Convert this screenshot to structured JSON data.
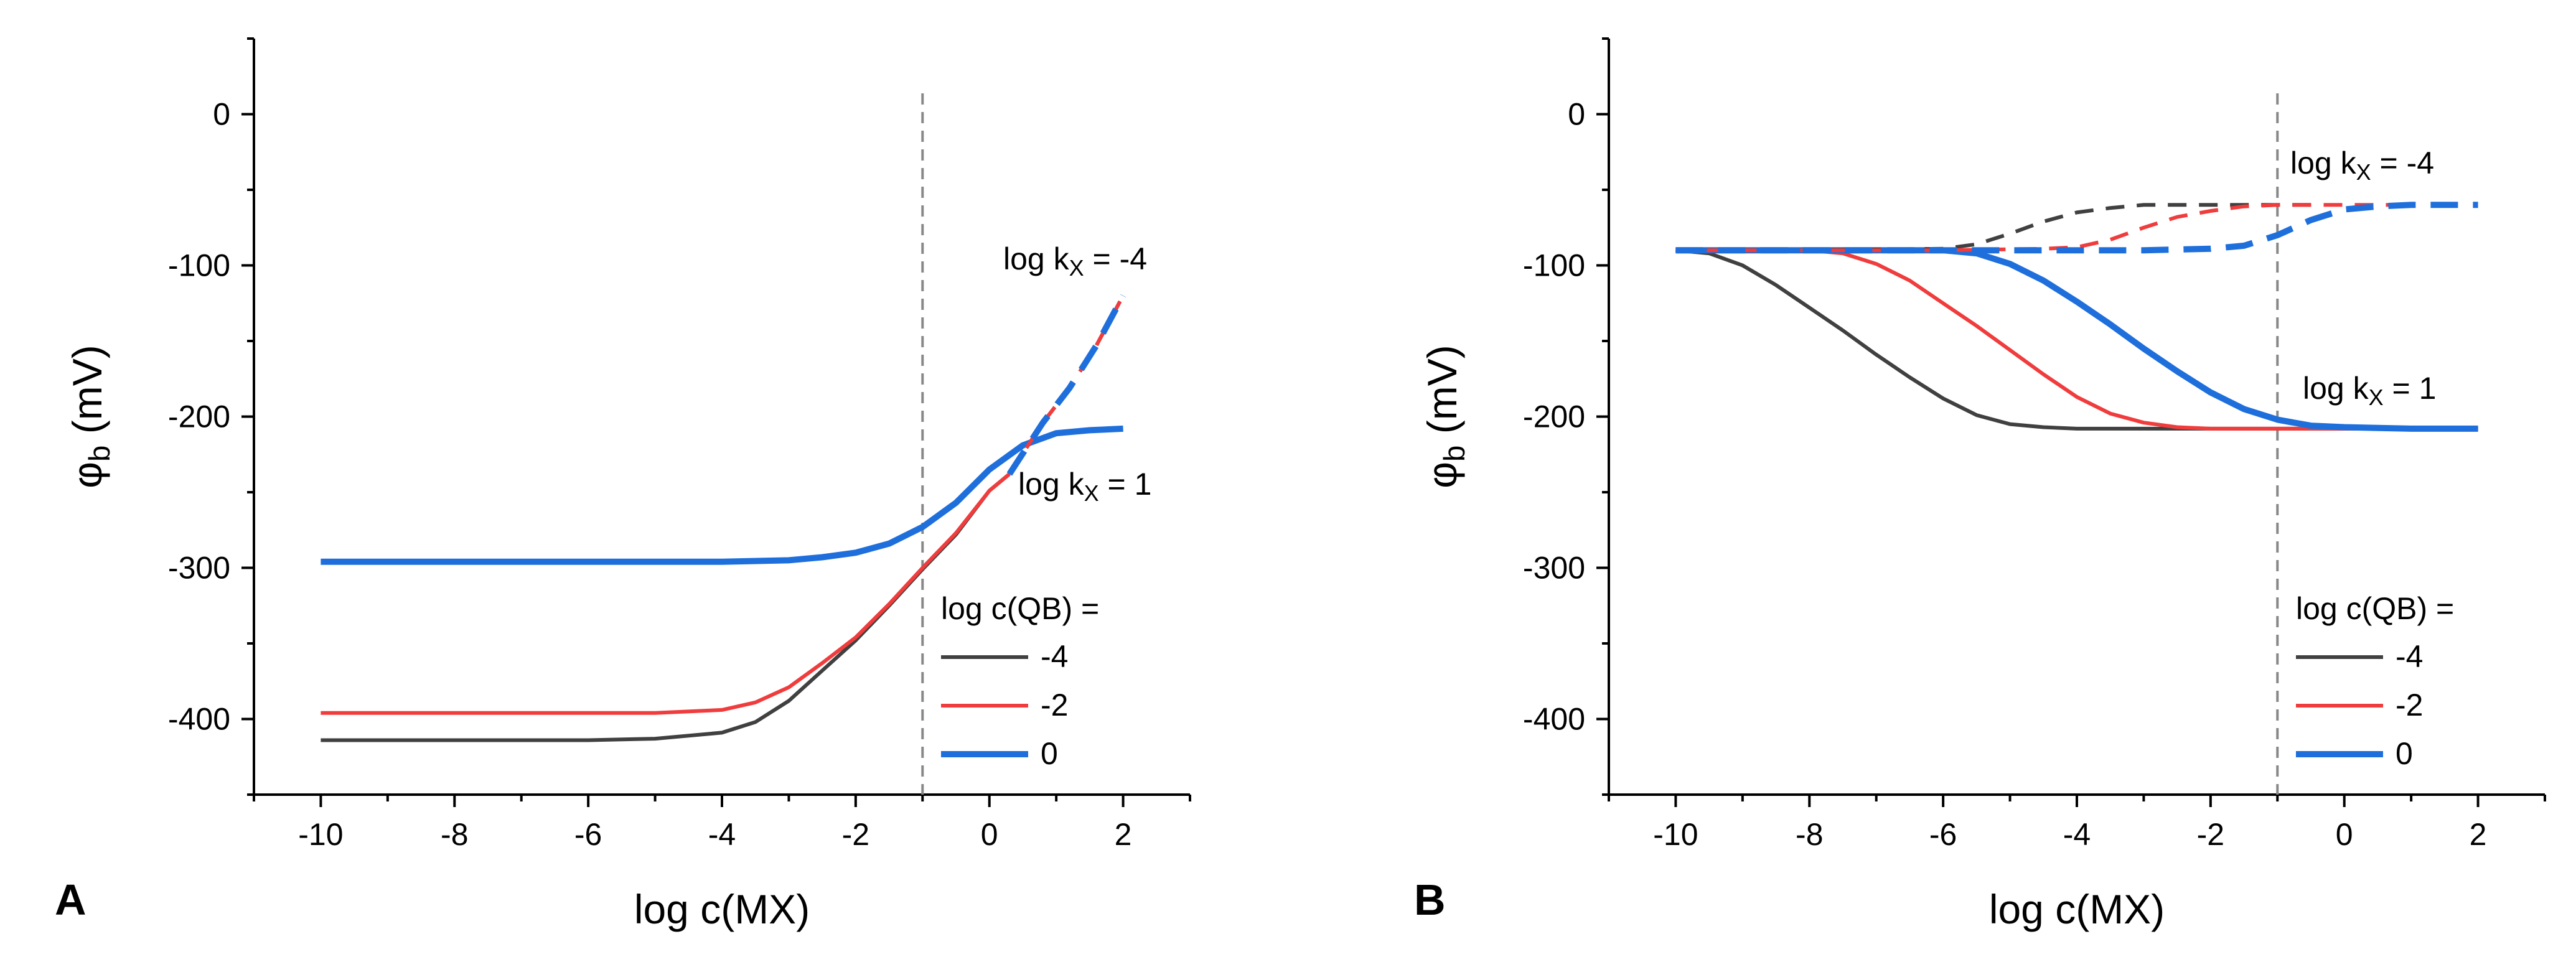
{
  "figure": {
    "background": "#ffffff"
  },
  "series_styles": {
    "-4": {
      "color": "#404040"
    },
    "-2": {
      "color": "#f03c3c"
    },
    "0": {
      "color": "#1e6fdc"
    }
  },
  "chart_data": [
    {
      "type": "line",
      "panel": "A",
      "xlabel": "log c(MX)",
      "ylabel": "φ_b (mV)",
      "xlim": [
        -11,
        3
      ],
      "ylim": [
        -450,
        50
      ],
      "xticks": [
        -10,
        -8,
        -6,
        -4,
        -2,
        0,
        2
      ],
      "yticks": [
        0,
        -100,
        -200,
        -300,
        -400
      ],
      "vline_x": -1,
      "legend": {
        "title": "log c(QB) =",
        "entries": [
          "-4",
          "-2",
          "0"
        ],
        "placement": "bottom-right"
      },
      "annotations": [
        {
          "text": "log k_X = -4",
          "near_x": 1.6,
          "near_y": -100
        },
        {
          "text": "log k_X = 1",
          "near_x": 1.2,
          "near_y": -243
        }
      ],
      "series": [
        {
          "name": "-4",
          "group": "log k_X = 1",
          "dashed": false,
          "x": [
            -10,
            -8,
            -6,
            -5,
            -4,
            -3.5,
            -3,
            -2.5,
            -2,
            -1.5,
            -1,
            -0.5,
            0,
            0.3
          ],
          "y": [
            -414,
            -414,
            -414,
            -413,
            -409,
            -402,
            -388,
            -368,
            -348,
            -325,
            -301,
            -278,
            -249,
            -238
          ]
        },
        {
          "name": "-2",
          "group": "log k_X = 1",
          "dashed": false,
          "x": [
            -10,
            -8,
            -6,
            -5,
            -4,
            -3.5,
            -3,
            -2.5,
            -2,
            -1.5,
            -1,
            -0.5,
            0,
            0.3
          ],
          "y": [
            -396,
            -396,
            -396,
            -396,
            -394,
            -389,
            -379,
            -363,
            -346,
            -324,
            -300,
            -277,
            -249,
            -238
          ]
        },
        {
          "name": "0",
          "group": "log k_X = 1",
          "dashed": false,
          "x": [
            -10,
            -8,
            -6,
            -4,
            -3,
            -2.5,
            -2,
            -1.5,
            -1,
            -0.5,
            0,
            0.5,
            1,
            1.5,
            2
          ],
          "y": [
            -296,
            -296,
            -296,
            -296,
            -295,
            -293,
            -290,
            -284,
            -273,
            -257,
            -235,
            -219,
            -211,
            -209,
            -208
          ]
        },
        {
          "name": "-4",
          "group": "log k_X = -4",
          "dashed": true,
          "x": [
            0.3,
            0.8,
            1.2,
            1.6,
            2
          ],
          "y": [
            -238,
            -204,
            -181,
            -153,
            -120
          ]
        },
        {
          "name": "-2",
          "group": "log k_X = -4",
          "dashed": true,
          "x": [
            0.3,
            0.8,
            1.2,
            1.6,
            2
          ],
          "y": [
            -238,
            -204,
            -181,
            -153,
            -120
          ]
        },
        {
          "name": "0",
          "group": "log k_X = -4",
          "dashed": true,
          "x": [
            0.3,
            0.8,
            1.2,
            1.6,
            2
          ],
          "y": [
            -238,
            -204,
            -181,
            -153,
            -120
          ]
        }
      ]
    },
    {
      "type": "line",
      "panel": "B",
      "xlabel": "log c(MX)",
      "ylabel": "φ_b (mV)",
      "xlim": [
        -11,
        3
      ],
      "ylim": [
        -450,
        50
      ],
      "xticks": [
        -10,
        -8,
        -6,
        -4,
        -2,
        0,
        2
      ],
      "yticks": [
        0,
        -100,
        -200,
        -300,
        -400
      ],
      "vline_x": -1,
      "legend": {
        "title": "log c(QB) =",
        "entries": [
          "-4",
          "-2",
          "0"
        ],
        "placement": "bottom-right"
      },
      "annotations": [
        {
          "text": "log k_X = -4",
          "near_x": -1.1,
          "near_y": -35
        },
        {
          "text": "log k_X = 1",
          "near_x": -0.9,
          "near_y": -185
        }
      ],
      "series": [
        {
          "name": "-4",
          "group": "log k_X = 1",
          "dashed": false,
          "x": [
            -10,
            -9.5,
            -9,
            -8.5,
            -8,
            -7.5,
            -7,
            -6.5,
            -6,
            -5.5,
            -5,
            -4.5,
            -4,
            -3,
            -2,
            0,
            2
          ],
          "y": [
            -90,
            -92,
            -100,
            -113,
            -128,
            -143,
            -159,
            -174,
            -188,
            -199,
            -205,
            -207,
            -208,
            -208,
            -208,
            -208,
            -208
          ]
        },
        {
          "name": "-2",
          "group": "log k_X = 1",
          "dashed": false,
          "x": [
            -10,
            -8,
            -7.5,
            -7,
            -6.5,
            -6,
            -5.5,
            -5,
            -4.5,
            -4,
            -3.5,
            -3,
            -2.5,
            -2,
            -1,
            0,
            2
          ],
          "y": [
            -90,
            -90,
            -92,
            -99,
            -110,
            -125,
            -140,
            -156,
            -172,
            -187,
            -198,
            -204,
            -207,
            -208,
            -208,
            -208,
            -208
          ]
        },
        {
          "name": "0",
          "group": "log k_X = 1",
          "dashed": false,
          "x": [
            -10,
            -6,
            -5.5,
            -5,
            -4.5,
            -4,
            -3.5,
            -3,
            -2.5,
            -2,
            -1.5,
            -1,
            -0.5,
            0,
            1,
            2
          ],
          "y": [
            -90,
            -90,
            -92,
            -99,
            -110,
            -124,
            -139,
            -155,
            -170,
            -184,
            -195,
            -202,
            -206,
            -207,
            -208,
            -208
          ]
        },
        {
          "name": "-4",
          "group": "log k_X = -4",
          "dashed": true,
          "x": [
            -10,
            -8,
            -6,
            -5.5,
            -5,
            -4.5,
            -4,
            -3.5,
            -3,
            -2,
            -1,
            -0.5
          ],
          "y": [
            -90,
            -90,
            -89,
            -86,
            -79,
            -71,
            -65,
            -62,
            -60,
            -60,
            -60,
            -60
          ]
        },
        {
          "name": "-2",
          "group": "log k_X = -4",
          "dashed": true,
          "x": [
            -10,
            -6,
            -4.5,
            -4,
            -3.5,
            -3,
            -2.5,
            -2,
            -1.5,
            -1,
            0,
            1
          ],
          "y": [
            -90,
            -90,
            -89,
            -88,
            -83,
            -75,
            -68,
            -64,
            -61,
            -60,
            -60,
            -60
          ]
        },
        {
          "name": "0",
          "group": "log k_X = -4",
          "dashed": true,
          "x": [
            -10,
            -6,
            -4,
            -3,
            -2,
            -1.5,
            -1,
            -0.5,
            0,
            0.5,
            1,
            2
          ],
          "y": [
            -90,
            -90,
            -90,
            -90,
            -89,
            -87,
            -80,
            -70,
            -63,
            -61,
            -60,
            -60
          ]
        }
      ]
    }
  ]
}
